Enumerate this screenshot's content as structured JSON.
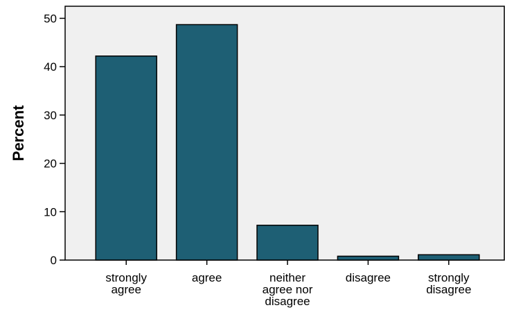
{
  "chart_data": {
    "type": "bar",
    "categories": [
      [
        "strongly",
        "agree"
      ],
      [
        "agree"
      ],
      [
        "neither",
        "agree nor",
        "disagree"
      ],
      [
        "disagree"
      ],
      [
        "strongly",
        "disagree"
      ]
    ],
    "values": [
      42.2,
      48.7,
      7.2,
      0.8,
      1.1
    ],
    "title": "",
    "xlabel": "",
    "ylabel": "Percent",
    "ylim": [
      0,
      52.5
    ],
    "yticks": [
      0,
      10,
      20,
      30,
      40,
      50
    ],
    "grid": false,
    "colors": {
      "bar": "#1e5f74",
      "plot_background": "#f0f0f0",
      "axis": "#000000"
    }
  }
}
